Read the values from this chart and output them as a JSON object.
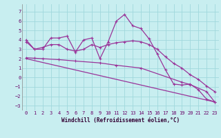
{
  "xlabel": "Windchill (Refroidissement éolien,°C)",
  "background_color": "#c8eef0",
  "grid_color": "#a0d8dc",
  "line_color": "#993399",
  "xlim": [
    -0.5,
    23.5
  ],
  "ylim": [
    -3.5,
    7.8
  ],
  "yticks": [
    -3,
    -2,
    -1,
    0,
    1,
    2,
    3,
    4,
    5,
    6,
    7
  ],
  "xticks": [
    0,
    1,
    2,
    3,
    4,
    5,
    6,
    7,
    8,
    9,
    10,
    11,
    12,
    13,
    14,
    15,
    16,
    17,
    18,
    19,
    20,
    21,
    22,
    23
  ],
  "series1_x": [
    0,
    1,
    2,
    3,
    4,
    5,
    6,
    7,
    8,
    9,
    10,
    11,
    12,
    13,
    14,
    15,
    16,
    17,
    18,
    19,
    20,
    21,
    22,
    23
  ],
  "series1_y": [
    4.0,
    3.0,
    3.0,
    4.2,
    4.2,
    4.4,
    2.7,
    4.0,
    4.2,
    2.0,
    3.8,
    6.0,
    6.7,
    5.5,
    5.2,
    4.1,
    2.5,
    0.8,
    -0.7,
    -0.8,
    -0.7,
    -1.3,
    -2.3,
    -2.6
  ],
  "series2_x": [
    0,
    1,
    2,
    3,
    4,
    5,
    6,
    7,
    8,
    9,
    10,
    11,
    12,
    13,
    14,
    15,
    16,
    17,
    18,
    19,
    20,
    21,
    22,
    23
  ],
  "series2_y": [
    3.8,
    3.0,
    3.2,
    3.5,
    3.5,
    3.0,
    2.8,
    3.0,
    3.5,
    3.2,
    3.5,
    3.7,
    3.8,
    3.9,
    3.8,
    3.5,
    3.0,
    2.2,
    1.5,
    1.0,
    0.3,
    -0.2,
    -0.9,
    -1.5
  ],
  "series3_x": [
    0,
    1,
    2,
    4,
    6,
    9,
    11,
    14,
    19,
    20,
    22,
    23
  ],
  "series3_y": [
    2.1,
    2.05,
    2.0,
    1.9,
    1.75,
    1.55,
    1.3,
    1.0,
    -0.5,
    -0.75,
    -1.5,
    -2.6
  ],
  "series4_x": [
    0,
    23
  ],
  "series4_y": [
    2.0,
    -2.6
  ]
}
